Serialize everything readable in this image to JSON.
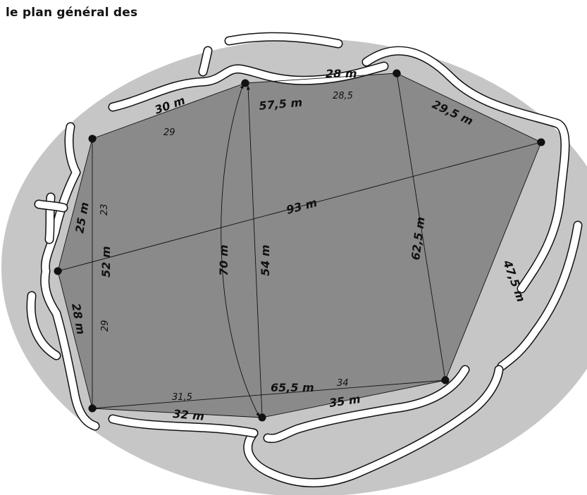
{
  "header": {
    "title": "le plan général des"
  },
  "colors": {
    "ellipse_fill": "#c6c6c6",
    "polygon_fill": "#8a8a8a",
    "path_fill": "#ffffff",
    "line": "#111111"
  },
  "measurements": {
    "top_left_segment": "30 m",
    "top_left_inner": "29",
    "top_segment": "57,5 m",
    "top_right_segment": "28 m",
    "top_right_inner": "28,5",
    "upper_right_segment": "29,5 m",
    "diagonal_long": "93 m",
    "left_upper_segment": "25 m",
    "left_upper_inner": "23",
    "left_vertical": "52 m",
    "left_lower_segment": "28 m",
    "left_lower_inner": "29",
    "arc_vertical": "70 m",
    "center_vertical": "54 m",
    "right_diagonal": "62,5 m",
    "right_lower_segment": "47,5 m",
    "bottom_left_inner": "31,5",
    "bottom_segment": "65,5 m",
    "bottom_right_inner": "34",
    "bottom_left_segment": "32 m",
    "bottom_right_segment": "35 m"
  }
}
